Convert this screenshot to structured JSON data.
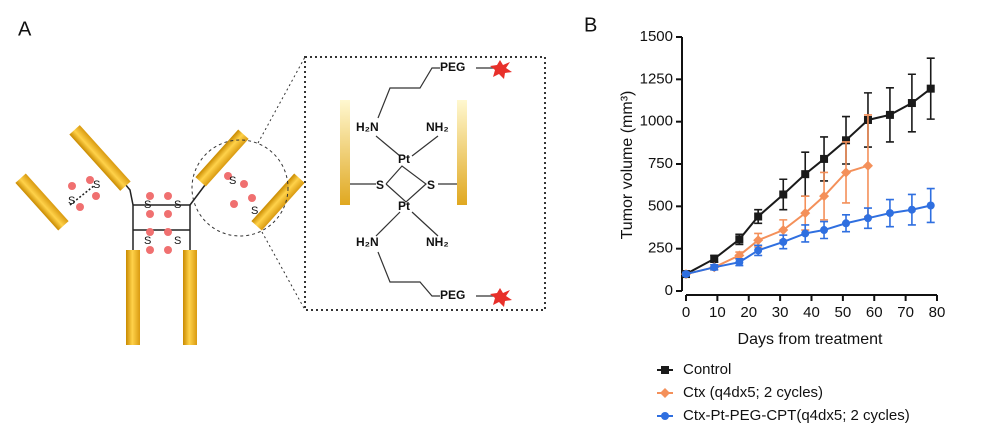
{
  "panel_labels": [
    "A",
    "B"
  ],
  "diagram": {
    "antibody_labels": [
      "S",
      "S",
      "S",
      "S",
      "S",
      "S",
      "S",
      "S"
    ],
    "inset_labels": [
      "PEG",
      "H₂N",
      "NH₂",
      "Pt",
      "S",
      "S",
      "Pt",
      "H₂N",
      "NH₂",
      "PEG"
    ]
  },
  "chart_data": {
    "type": "line",
    "xlabel": "Days from treatment",
    "ylabel": "Tumor volume (mm³)",
    "xlim": [
      0,
      80
    ],
    "xticks": [
      0,
      10,
      20,
      30,
      40,
      50,
      60,
      70,
      80
    ],
    "ylim": [
      0,
      1500
    ],
    "yticks": [
      0,
      250,
      500,
      750,
      1000,
      1250,
      1500
    ],
    "legend": "bottom",
    "series": [
      {
        "name": "Control",
        "color": "#1a1a1a",
        "marker": "square",
        "x": [
          0,
          9,
          17,
          23,
          31,
          38,
          44,
          51,
          58,
          65,
          72,
          78
        ],
        "values": [
          100,
          190,
          305,
          440,
          570,
          690,
          780,
          890,
          1010,
          1040,
          1110,
          1195
        ],
        "errors": [
          10,
          20,
          30,
          40,
          90,
          130,
          130,
          140,
          160,
          160,
          170,
          180
        ]
      },
      {
        "name": "Ctx (q4dx5; 2 cycles)",
        "color": "#f4905a",
        "marker": "diamond",
        "x": [
          0,
          9,
          17,
          23,
          31,
          38,
          44,
          51,
          58
        ],
        "values": [
          100,
          140,
          210,
          300,
          360,
          460,
          560,
          700,
          740
        ],
        "errors": [
          10,
          15,
          20,
          40,
          60,
          100,
          140,
          180,
          300
        ]
      },
      {
        "name": "Ctx-Pt-PEG-CPT(q4dx5; 2 cycles)",
        "color": "#2f6fe0",
        "marker": "circle",
        "x": [
          0,
          9,
          17,
          23,
          31,
          38,
          44,
          51,
          58,
          65,
          72,
          78
        ],
        "values": [
          100,
          140,
          170,
          240,
          290,
          340,
          360,
          400,
          430,
          460,
          480,
          505
        ],
        "errors": [
          10,
          15,
          20,
          30,
          40,
          50,
          50,
          50,
          60,
          80,
          90,
          100
        ]
      }
    ]
  }
}
